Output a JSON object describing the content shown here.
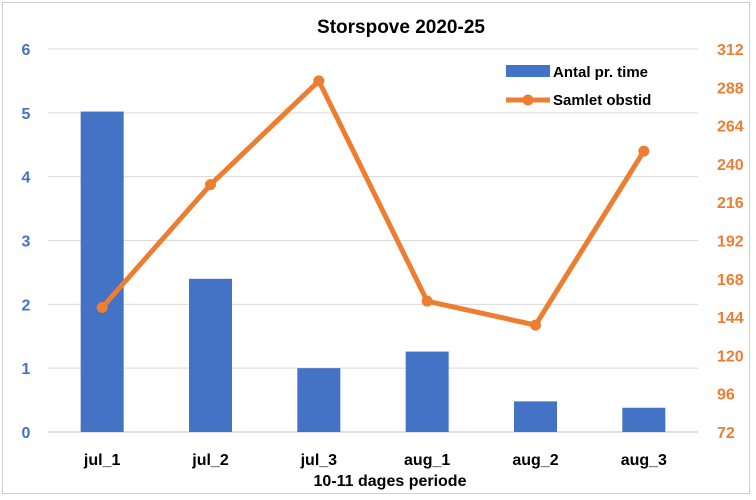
{
  "chart_data": {
    "type": "bar+line",
    "title": "Storspove 2020-25",
    "xlabel": "10-11 dages periode",
    "categories": [
      "jul_1",
      "jul_2",
      "jul_3",
      "aug_1",
      "aug_2",
      "aug_3"
    ],
    "series": [
      {
        "name": "Antal pr. time",
        "type": "bar",
        "axis": "left",
        "color": "#4472c4",
        "values": [
          5.02,
          2.4,
          1.0,
          1.26,
          0.48,
          0.38
        ]
      },
      {
        "name": "Samlet obstid",
        "type": "line",
        "axis": "right",
        "color": "#ed7d31",
        "values": [
          150,
          227,
          292,
          154,
          139,
          248
        ]
      }
    ],
    "y_left": {
      "min": 0,
      "max": 6,
      "ticks": [
        "0",
        "1",
        "2",
        "3",
        "4",
        "5",
        "6"
      ],
      "color": "#4472c4"
    },
    "y_right": {
      "min": 72,
      "max": 312,
      "ticks": [
        "72",
        "96",
        "120",
        "144",
        "168",
        "192",
        "216",
        "240",
        "264",
        "288",
        "312"
      ],
      "color": "#ed7d31"
    },
    "grid": true,
    "legend_position": "top-right"
  }
}
